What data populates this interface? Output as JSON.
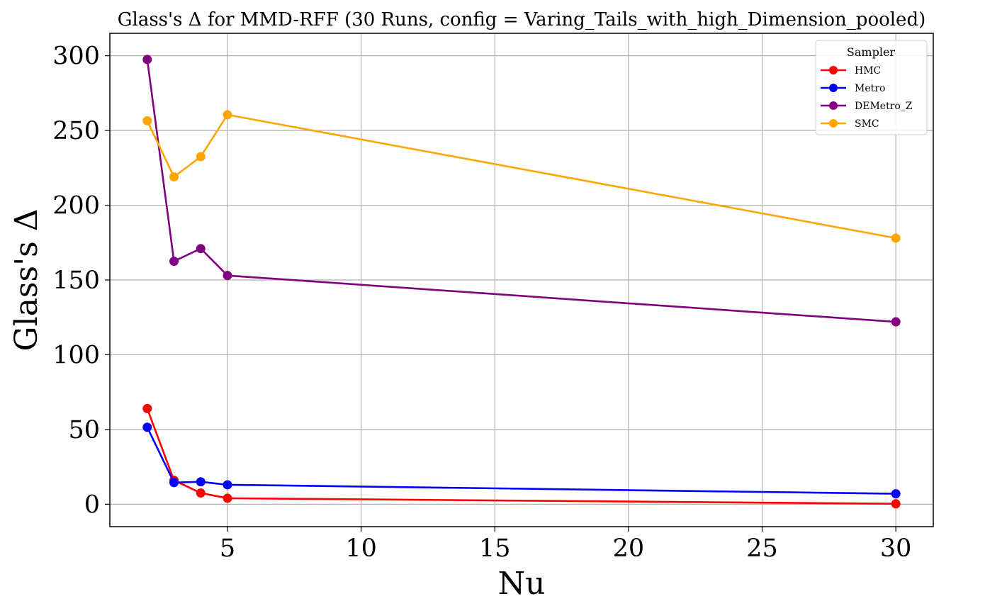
{
  "chart_data": {
    "type": "line",
    "title": "Glass's Δ for MMD-RFF (30 Runs, config = Varing_Tails_with_high_Dimension_pooled)",
    "xlabel": "Nu",
    "ylabel": "Glass's Δ",
    "x": [
      2,
      3,
      4,
      5,
      30
    ],
    "xlim": [
      0.6,
      31.4
    ],
    "ylim": [
      -15,
      315
    ],
    "xticks": [
      5,
      10,
      15,
      20,
      25,
      30
    ],
    "yticks": [
      0,
      50,
      100,
      150,
      200,
      250,
      300
    ],
    "grid": true,
    "legend": {
      "title": "Sampler",
      "position": "top-right"
    },
    "series": [
      {
        "name": "HMC",
        "color": "#ff0000",
        "values": [
          64,
          16,
          7.5,
          4,
          0.3
        ]
      },
      {
        "name": "Metro",
        "color": "#0000ff",
        "values": [
          51.5,
          14.5,
          15,
          13,
          7
        ]
      },
      {
        "name": "DEMetro_Z",
        "color": "#800080",
        "values": [
          297.5,
          162.5,
          171,
          153,
          122
        ]
      },
      {
        "name": "SMC",
        "color": "#ffa500",
        "values": [
          256.5,
          219,
          232.5,
          260.5,
          178
        ]
      }
    ]
  }
}
